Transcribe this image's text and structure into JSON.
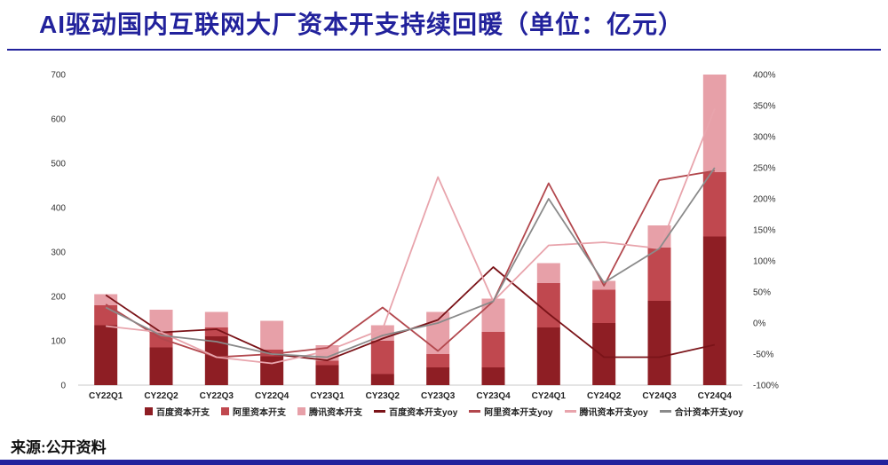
{
  "page": {
    "title": "AI驱动国内互联网大厂资本开支持续回暖（单位：亿元）",
    "source": "来源:公开资料"
  },
  "colors": {
    "accent_navy": "#22229c",
    "baidu_bar": "#8e1e24",
    "ali_bar": "#c0484f",
    "tencent_bar": "#e7a0a8",
    "baidu_line": "#7a1318",
    "ali_line": "#b2474d",
    "tencent_line": "#e8a4ac",
    "total_line": "#8a8a8a",
    "axis_text": "#333333"
  },
  "chart_data": {
    "type": "bar",
    "subtype": "stacked capex bars on left axis (亿元) with yoy growth lines on right axis (%)",
    "title": "AI驱动国内互联网大厂资本开支持续回暖（单位：亿元）",
    "categories": [
      "CY22Q1",
      "CY22Q2",
      "CY22Q3",
      "CY22Q4",
      "CY23Q1",
      "CY23Q2",
      "CY23Q3",
      "CY23Q4",
      "CY24Q1",
      "CY24Q2",
      "CY24Q3",
      "CY24Q4"
    ],
    "bar_series": [
      {
        "name": "百度资本开支",
        "color": "baidu_bar",
        "values": [
          135,
          85,
          110,
          65,
          45,
          25,
          40,
          40,
          130,
          140,
          190,
          335
        ]
      },
      {
        "name": "阿里资本开支",
        "color": "ali_bar",
        "values": [
          45,
          35,
          20,
          15,
          10,
          75,
          30,
          80,
          100,
          75,
          120,
          145
        ]
      },
      {
        "name": "腾讯资本开支",
        "color": "tencent_bar",
        "values": [
          25,
          50,
          35,
          65,
          35,
          35,
          95,
          75,
          45,
          20,
          50,
          220
        ]
      }
    ],
    "line_series": [
      {
        "name": "百度资本开支yoy",
        "color": "baidu_line",
        "values": [
          45,
          -15,
          -10,
          -50,
          -60,
          -25,
          5,
          90,
          15,
          -55,
          -55,
          -35
        ]
      },
      {
        "name": "阿里资本开支yoy",
        "color": "ali_line",
        "values": [
          30,
          -25,
          -55,
          -50,
          -40,
          25,
          -45,
          35,
          225,
          60,
          230,
          245
        ]
      },
      {
        "name": "腾讯资本开支yoy",
        "color": "tencent_line",
        "values": [
          -5,
          -15,
          -55,
          -65,
          -45,
          -10,
          235,
          35,
          125,
          130,
          120,
          345
        ]
      },
      {
        "name": "合计资本开支yoy",
        "color": "total_line",
        "values": [
          25,
          -20,
          -30,
          -50,
          -55,
          -20,
          0,
          35,
          200,
          65,
          120,
          250
        ]
      }
    ],
    "left_axis": {
      "min": 0,
      "max": 700,
      "step": 100,
      "suffix": ""
    },
    "right_axis": {
      "min": -100,
      "max": 400,
      "step": 50,
      "suffix": "%"
    },
    "legend_position": "bottom",
    "grid": false
  }
}
